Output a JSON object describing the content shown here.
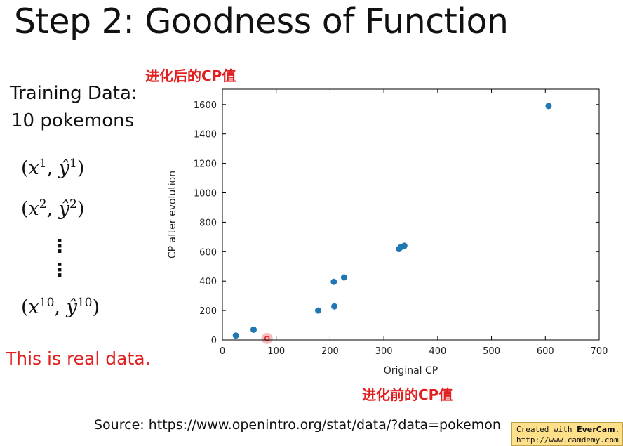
{
  "title": "Step 2: Goodness of Function",
  "training": {
    "line1": "Training Data:",
    "line2": "10 pokemons"
  },
  "samples": {
    "first": {
      "x": "x",
      "sup": "1",
      "y": "ŷ"
    },
    "second": {
      "x": "x",
      "sup": "2",
      "y": "ŷ"
    },
    "last": {
      "x": "x",
      "sup": "10",
      "y": "ŷ"
    }
  },
  "real_data_note": "This is real data.",
  "ylabel_cn": "进化后的CP值",
  "xlabel_cn": "进化前的CP值",
  "source": "Source: https://www.openintro.org/stat/data/?data=pokemon",
  "watermark": {
    "prefix": "Created with ",
    "brand": "EverCam",
    "suffix": ".",
    "url": "http://www.camdemy.com"
  },
  "colors": {
    "point": "#1f77b4",
    "accent_red": "#e02020",
    "cursor_highlight": "#f5a0a0"
  },
  "chart_data": {
    "type": "scatter",
    "xlabel": "Original CP",
    "ylabel": "CP after evolution",
    "xlim": [
      0,
      700
    ],
    "ylim": [
      0,
      1700
    ],
    "x_ticks": [
      0,
      100,
      200,
      300,
      400,
      500,
      600,
      700
    ],
    "y_ticks": [
      0,
      200,
      400,
      600,
      800,
      1000,
      1200,
      1400,
      1600
    ],
    "grid": false,
    "points": [
      {
        "x": 25,
        "y": 30
      },
      {
        "x": 58,
        "y": 70
      },
      {
        "x": 178,
        "y": 200
      },
      {
        "x": 208,
        "y": 228
      },
      {
        "x": 207,
        "y": 395
      },
      {
        "x": 226,
        "y": 425
      },
      {
        "x": 328,
        "y": 618
      },
      {
        "x": 332,
        "y": 632
      },
      {
        "x": 338,
        "y": 640
      },
      {
        "x": 606,
        "y": 1590
      }
    ]
  },
  "cursor": {
    "x": 83,
    "y": -50
  }
}
